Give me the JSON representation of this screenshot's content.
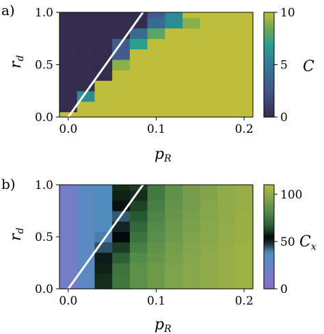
{
  "chart_data": [
    {
      "panel_label": "a)",
      "type": "heatmap",
      "xlabel": "p_R",
      "ylabel": "r_d",
      "xlim": [
        -0.01,
        0.21
      ],
      "ylim": [
        0.0,
        1.0
      ],
      "xticks": [
        {
          "value": 0.0,
          "label": "0.0"
        },
        {
          "value": 0.1,
          "label": "0.1"
        },
        {
          "value": 0.2,
          "label": "0.2"
        }
      ],
      "yticks": [
        {
          "value": 0.0,
          "label": "0.0"
        },
        {
          "value": 0.5,
          "label": "0.5"
        },
        {
          "value": 1.0,
          "label": "1.0"
        }
      ],
      "colormap": "viridis",
      "colorbar": {
        "label": "C",
        "vmin": 0,
        "vmax": 10,
        "ticks": [
          {
            "value": 0,
            "label": "0"
          },
          {
            "value": 5,
            "label": "5"
          },
          {
            "value": 10,
            "label": "10"
          }
        ]
      },
      "x_edges": [
        -0.01,
        0.01,
        0.03,
        0.05,
        0.07,
        0.09,
        0.11,
        0.13,
        0.15,
        0.17,
        0.19,
        0.21
      ],
      "y_edges": [
        0.0,
        0.05,
        0.15,
        0.25,
        0.35,
        0.45,
        0.55,
        0.65,
        0.75,
        0.85,
        0.95,
        1.0
      ],
      "z": [
        [
          10,
          10,
          10,
          10,
          10,
          10,
          10,
          10,
          10,
          10,
          10
        ],
        [
          0,
          10,
          10,
          10,
          10,
          10,
          10,
          10,
          10,
          10,
          10
        ],
        [
          0,
          6,
          10,
          10,
          10,
          10,
          10,
          10,
          10,
          10,
          10
        ],
        [
          0,
          0,
          10,
          10,
          10,
          10,
          10,
          10,
          10,
          10,
          10
        ],
        [
          0,
          0,
          0,
          10,
          10,
          10,
          10,
          10,
          10,
          10,
          10
        ],
        [
          0,
          0,
          0,
          9,
          10,
          10,
          10,
          10,
          10,
          10,
          10
        ],
        [
          0,
          0,
          0,
          3,
          10,
          10,
          10,
          10,
          10,
          10,
          10
        ],
        [
          0,
          0,
          0,
          3,
          7,
          10,
          10,
          10,
          10,
          10,
          10
        ],
        [
          0,
          0,
          0,
          0,
          4,
          8,
          10,
          10,
          10,
          10,
          10
        ],
        [
          0,
          0,
          0,
          0,
          0,
          4,
          6,
          9,
          10,
          10,
          10
        ],
        [
          0,
          0,
          0,
          0,
          0,
          3,
          6,
          10,
          10,
          10,
          10
        ]
      ],
      "overlay_line": {
        "x": [
          0.0,
          0.085
        ],
        "y": [
          0.0,
          1.0
        ],
        "color": "#ffffff"
      }
    },
    {
      "panel_label": "b)",
      "type": "heatmap",
      "xlabel": "p_R",
      "ylabel": "r_d",
      "xlim": [
        -0.01,
        0.21
      ],
      "ylim": [
        0.0,
        1.0
      ],
      "xticks": [
        {
          "value": 0.0,
          "label": "0.0"
        },
        {
          "value": 0.1,
          "label": "0.1"
        },
        {
          "value": 0.2,
          "label": "0.2"
        }
      ],
      "yticks": [
        {
          "value": 0.0,
          "label": "0.0"
        },
        {
          "value": 0.5,
          "label": "0.5"
        },
        {
          "value": 1.0,
          "label": "1.0"
        }
      ],
      "colormap": "diverging-purple-black-green",
      "colorbar": {
        "label": "C_x",
        "vmin": 0,
        "vmax": 110,
        "ticks": [
          {
            "value": 0,
            "label": "0"
          },
          {
            "value": 50,
            "label": "50"
          },
          {
            "value": 100,
            "label": "100"
          }
        ]
      },
      "x_edges": [
        -0.01,
        0.01,
        0.03,
        0.05,
        0.07,
        0.09,
        0.11,
        0.13,
        0.15,
        0.17,
        0.19,
        0.21
      ],
      "y_edges": [
        0.0,
        0.05,
        0.15,
        0.25,
        0.35,
        0.45,
        0.55,
        0.65,
        0.75,
        0.85,
        0.95,
        1.0
      ],
      "z": [
        [
          16,
          32,
          60,
          75,
          85,
          90,
          95,
          98,
          100,
          102,
          104
        ],
        [
          16,
          32,
          60,
          75,
          85,
          90,
          95,
          98,
          100,
          102,
          104
        ],
        [
          16,
          32,
          58,
          74,
          85,
          90,
          95,
          98,
          100,
          102,
          104
        ],
        [
          16,
          32,
          52,
          68,
          82,
          88,
          93,
          97,
          100,
          102,
          104
        ],
        [
          16,
          32,
          45,
          62,
          78,
          86,
          92,
          96,
          99,
          102,
          104
        ],
        [
          16,
          32,
          40,
          55,
          74,
          84,
          90,
          95,
          98,
          101,
          103
        ],
        [
          16,
          32,
          38,
          50,
          70,
          82,
          89,
          94,
          98,
          101,
          103
        ],
        [
          16,
          32,
          38,
          44,
          66,
          80,
          88,
          93,
          97,
          100,
          103
        ],
        [
          16,
          32,
          38,
          56,
          63,
          78,
          87,
          92,
          97,
          100,
          102
        ],
        [
          16,
          32,
          38,
          58,
          60,
          76,
          86,
          92,
          96,
          100,
          102
        ],
        [
          16,
          32,
          38,
          60,
          62,
          76,
          86,
          92,
          96,
          100,
          102
        ]
      ],
      "overlay_line": {
        "x": [
          0.0,
          0.085
        ],
        "y": [
          0.0,
          1.0
        ],
        "color": "#ffffff"
      }
    }
  ]
}
